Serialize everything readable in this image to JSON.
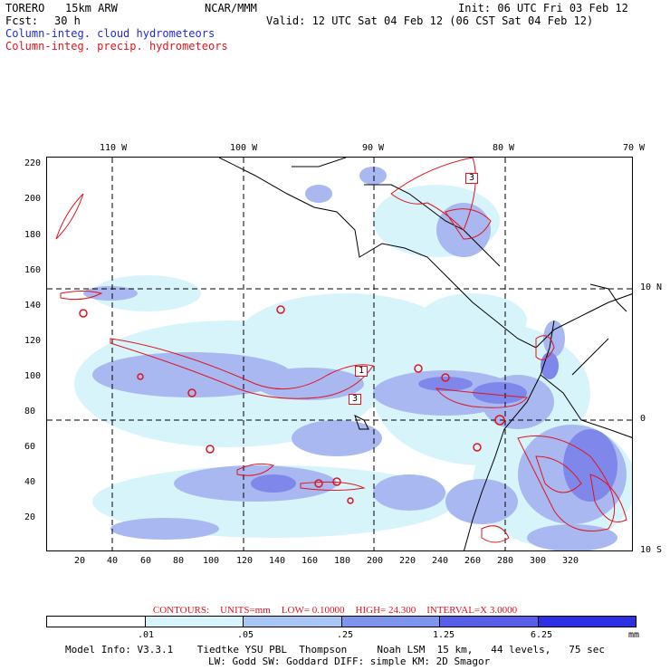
{
  "header": {
    "model": "TORERO",
    "resolution": "15km ARW",
    "org": "NCAR/MMM",
    "init": "Init: 06 UTC Fri 03 Feb 12",
    "fcst_label": "Fcst:",
    "fcst_value": "30 h",
    "valid": "Valid: 12 UTC Sat 04 Feb 12 (06 CST Sat 04 Feb 12)",
    "field1": "Column-integ. cloud hydrometeors",
    "field2": "Column-integ. precip. hydrometeors"
  },
  "axes": {
    "lon_labels": [
      "110 W",
      "100 W",
      "90 W",
      "80 W",
      "70 W"
    ],
    "lat_labels": [
      "10 N",
      "0",
      "10 S"
    ],
    "y_ticks": [
      "220",
      "200",
      "180",
      "160",
      "140",
      "120",
      "100",
      "80",
      "60",
      "40",
      "20"
    ],
    "x_ticks": [
      "20",
      "40",
      "60",
      "80",
      "100",
      "120",
      "140",
      "160",
      "180",
      "200",
      "220",
      "240",
      "260",
      "280",
      "300",
      "320"
    ]
  },
  "contour_labels": [
    "1",
    "3",
    "3"
  ],
  "contour_info": {
    "label": "CONTOURS:",
    "units": "UNITS=mm",
    "low": "LOW= 0.10000",
    "high": "HIGH= 24.300",
    "interval": "INTERVAL=X 3.0000"
  },
  "colorbar": {
    "colors": [
      "#ffffff",
      "#d8f4fb",
      "#a9c6f4",
      "#7f94ec",
      "#5b5ee6",
      "#2f2fe4"
    ],
    "labels": [
      ".01",
      ".05",
      ".25",
      "1.25",
      "6.25",
      "mm"
    ]
  },
  "footer": {
    "line1": "Model Info: V3.3.1    Tiedtke YSU PBL  Thompson     Noah LSM  15 km,   44 levels,   75 sec",
    "line2": "LW: Godd SW: Goddard DIFF: simple KM: 2D Smagor"
  }
}
